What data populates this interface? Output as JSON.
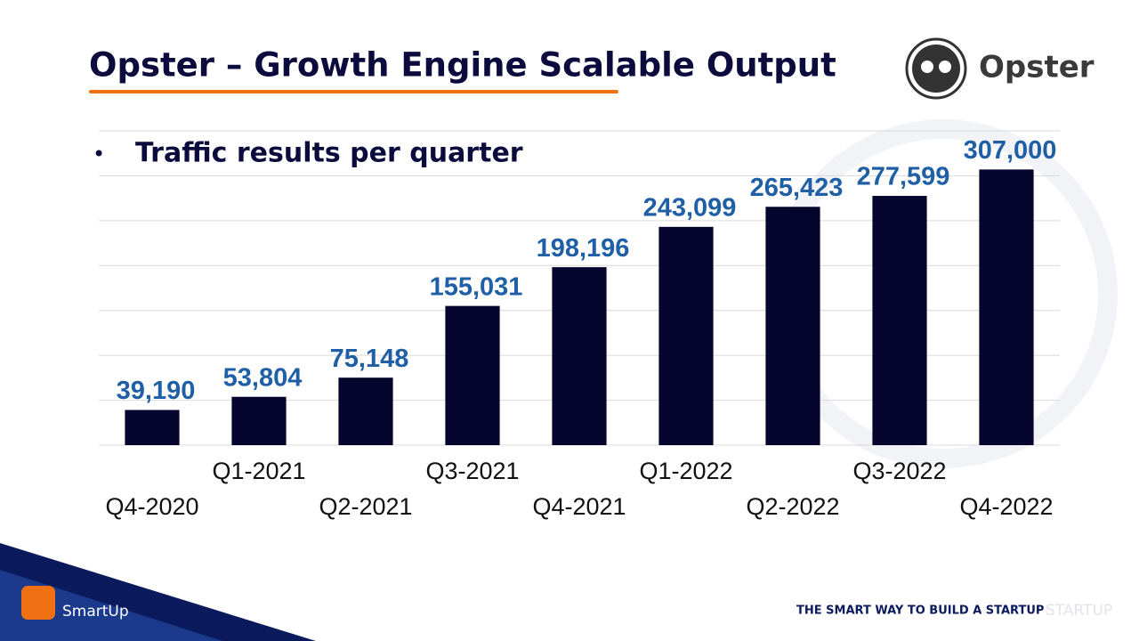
{
  "slide": {
    "title": "Opster – Growth Engine Scalable Output",
    "bullet": "Traffic results per quarter",
    "logo": "Opster",
    "brand": "SmartUp",
    "tagline": "THE SMART WAY TO BUILD A STARTUP",
    "watermark": "STARTUP"
  },
  "chart_data": {
    "type": "bar",
    "categories": [
      "Q4-2020",
      "Q1-2021",
      "Q2-2021",
      "Q3-2021",
      "Q4-2021",
      "Q1-2022",
      "Q2-2022",
      "Q3-2022",
      "Q4-2022"
    ],
    "values": [
      39190,
      53804,
      75148,
      155031,
      198196,
      243099,
      265423,
      277599,
      307000
    ],
    "value_labels": [
      "39,190",
      "53,804",
      "75,148",
      "155,031",
      "198,196",
      "243,099",
      "265,423",
      "277,599",
      "307,000"
    ],
    "color": "#05052e",
    "label_color": "#1f5fa6",
    "ylim": [
      0,
      350000
    ],
    "yticks": [
      0,
      50000,
      100000,
      150000,
      200000,
      250000,
      300000,
      350000
    ],
    "grid": true
  }
}
